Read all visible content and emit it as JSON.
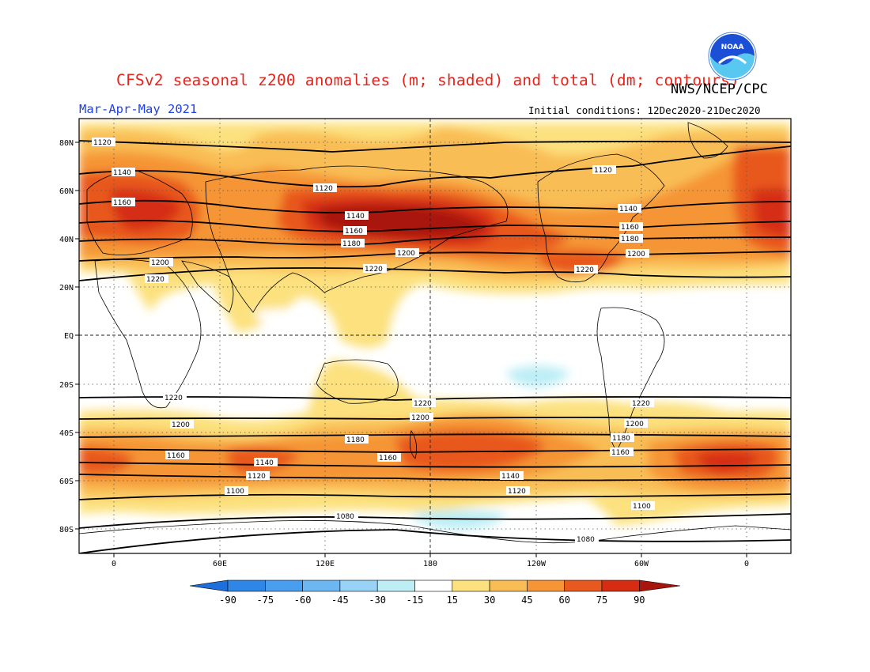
{
  "header": {
    "title": "CFSv2 seasonal z200 anomalies (m; shaded) and total (dm; contours)",
    "agency": "NWS/NCEP/CPC",
    "season": "Mar-Apr-May 2021",
    "initial_conditions": "Initial conditions: 12Dec2020-21Dec2020"
  },
  "logo": {
    "name": "NOAA",
    "icon": "noaa-logo-icon",
    "color": "#1a4fd6"
  },
  "map": {
    "lat_ticks": [
      "80N",
      "60N",
      "40N",
      "20N",
      "EQ",
      "20S",
      "40S",
      "60S",
      "80S"
    ],
    "lon_ticks": [
      "0",
      "60E",
      "120E",
      "180",
      "120W",
      "60W",
      "0"
    ]
  },
  "colorbar": {
    "labels": [
      "-90",
      "-75",
      "-60",
      "-45",
      "-30",
      "-15",
      "15",
      "30",
      "45",
      "60",
      "75",
      "90"
    ],
    "colors": [
      "#1e6fdc",
      "#2e86e6",
      "#4a9ef0",
      "#6cb6f2",
      "#98d2f6",
      "#bdeef6",
      "#ffffff",
      "#fce17e",
      "#f9bd55",
      "#f59536",
      "#e8591f",
      "#d62d12",
      "#a8150d"
    ]
  },
  "contour_labels": {
    "c1120_n": "1120",
    "c1140_n": "1140",
    "c1160_n": "1160",
    "c1180_n": "1180",
    "c1200_n": "1200",
    "c1220_n": "1220",
    "c1220_s": "1220",
    "c1200_s": "1200",
    "c1180_s": "1180",
    "c1160_s": "1160",
    "c1140_s": "1140",
    "c1120_s": "1120",
    "c1100_s": "1100",
    "c1080_s": "1080",
    "c1080_s_alt": "1080"
  }
}
